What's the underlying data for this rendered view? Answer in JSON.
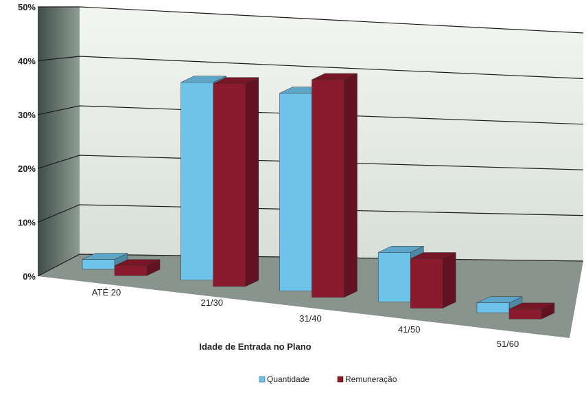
{
  "chart_data": {
    "type": "bar",
    "title": "",
    "xlabel": "Idade de Entrada no Plano",
    "ylabel": "",
    "categories": [
      "ATÉ 20",
      "21/30",
      "31/40",
      "41/50",
      "51/60"
    ],
    "series": [
      {
        "name": "Quantidade",
        "values": [
          2,
          40,
          40,
          10,
          2
        ]
      },
      {
        "name": "Remuneração",
        "values": [
          2,
          41,
          44,
          10,
          2
        ]
      }
    ],
    "ylim": [
      0,
      50
    ],
    "yticks": [
      "0%",
      "10%",
      "20%",
      "30%",
      "40%",
      "50%"
    ],
    "grid": true,
    "legend": "bottom",
    "colors": {
      "Quantidade": "#6ec3ea",
      "Remuneração": "#8c1a2e",
      "wall": "#dfe6df",
      "side_wall": "#6f7f79",
      "floor": "#8a948e"
    }
  }
}
